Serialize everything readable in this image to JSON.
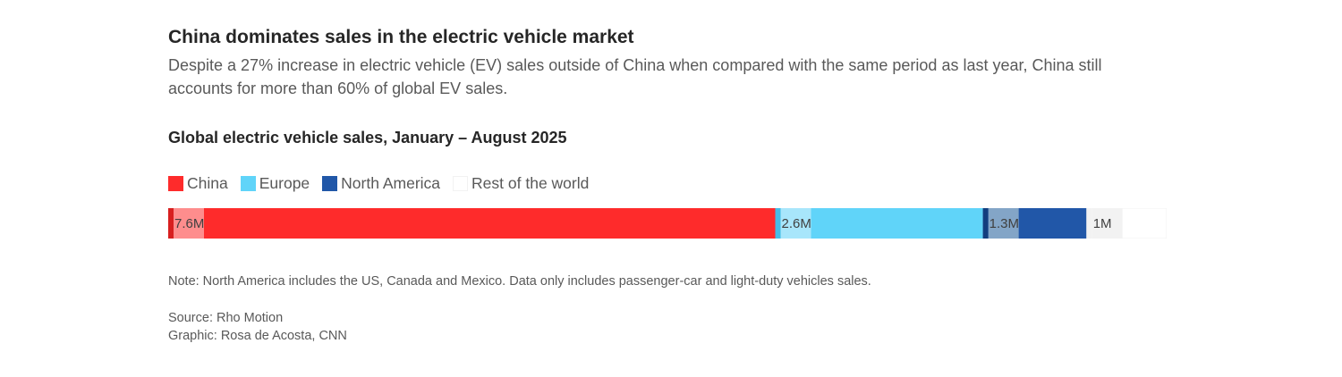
{
  "headline": "China dominates sales in the electric vehicle market",
  "dek": "Despite a 27% increase in electric vehicle (EV) sales outside of China when compared with the same period as last year, China still accounts for more than 60% of global EV sales.",
  "note": "Note: North America includes the US, Canada and Mexico. Data only includes passenger-car and light-duty vehicles sales.",
  "source": "Source: Rho Motion",
  "graphic": "Graphic: Rosa de Acosta, CNN",
  "chart_data": {
    "type": "bar",
    "orientation": "horizontal-stacked",
    "title": "Global electric vehicle sales, January – August 2025",
    "legend_position": "top-left",
    "categories": [
      "China",
      "Europe",
      "North America",
      "Rest of the world"
    ],
    "values": [
      7.6,
      2.6,
      1.3,
      1.0
    ],
    "value_labels": [
      "7.6M",
      "2.6M",
      "1.3M",
      "1M"
    ],
    "unit": "million vehicles",
    "colors": [
      "#fe2b2b",
      "#60d4f9",
      "#2157a8",
      "#ffffff"
    ],
    "label_bg_colors": [
      "#fe8d8d",
      "#a8e6fb",
      "#83a5c7",
      "#f2f2f2"
    ],
    "edge_colors": [
      "#d81f1f",
      "#45bde6",
      "#123d7e",
      "#f2f2f2"
    ]
  }
}
